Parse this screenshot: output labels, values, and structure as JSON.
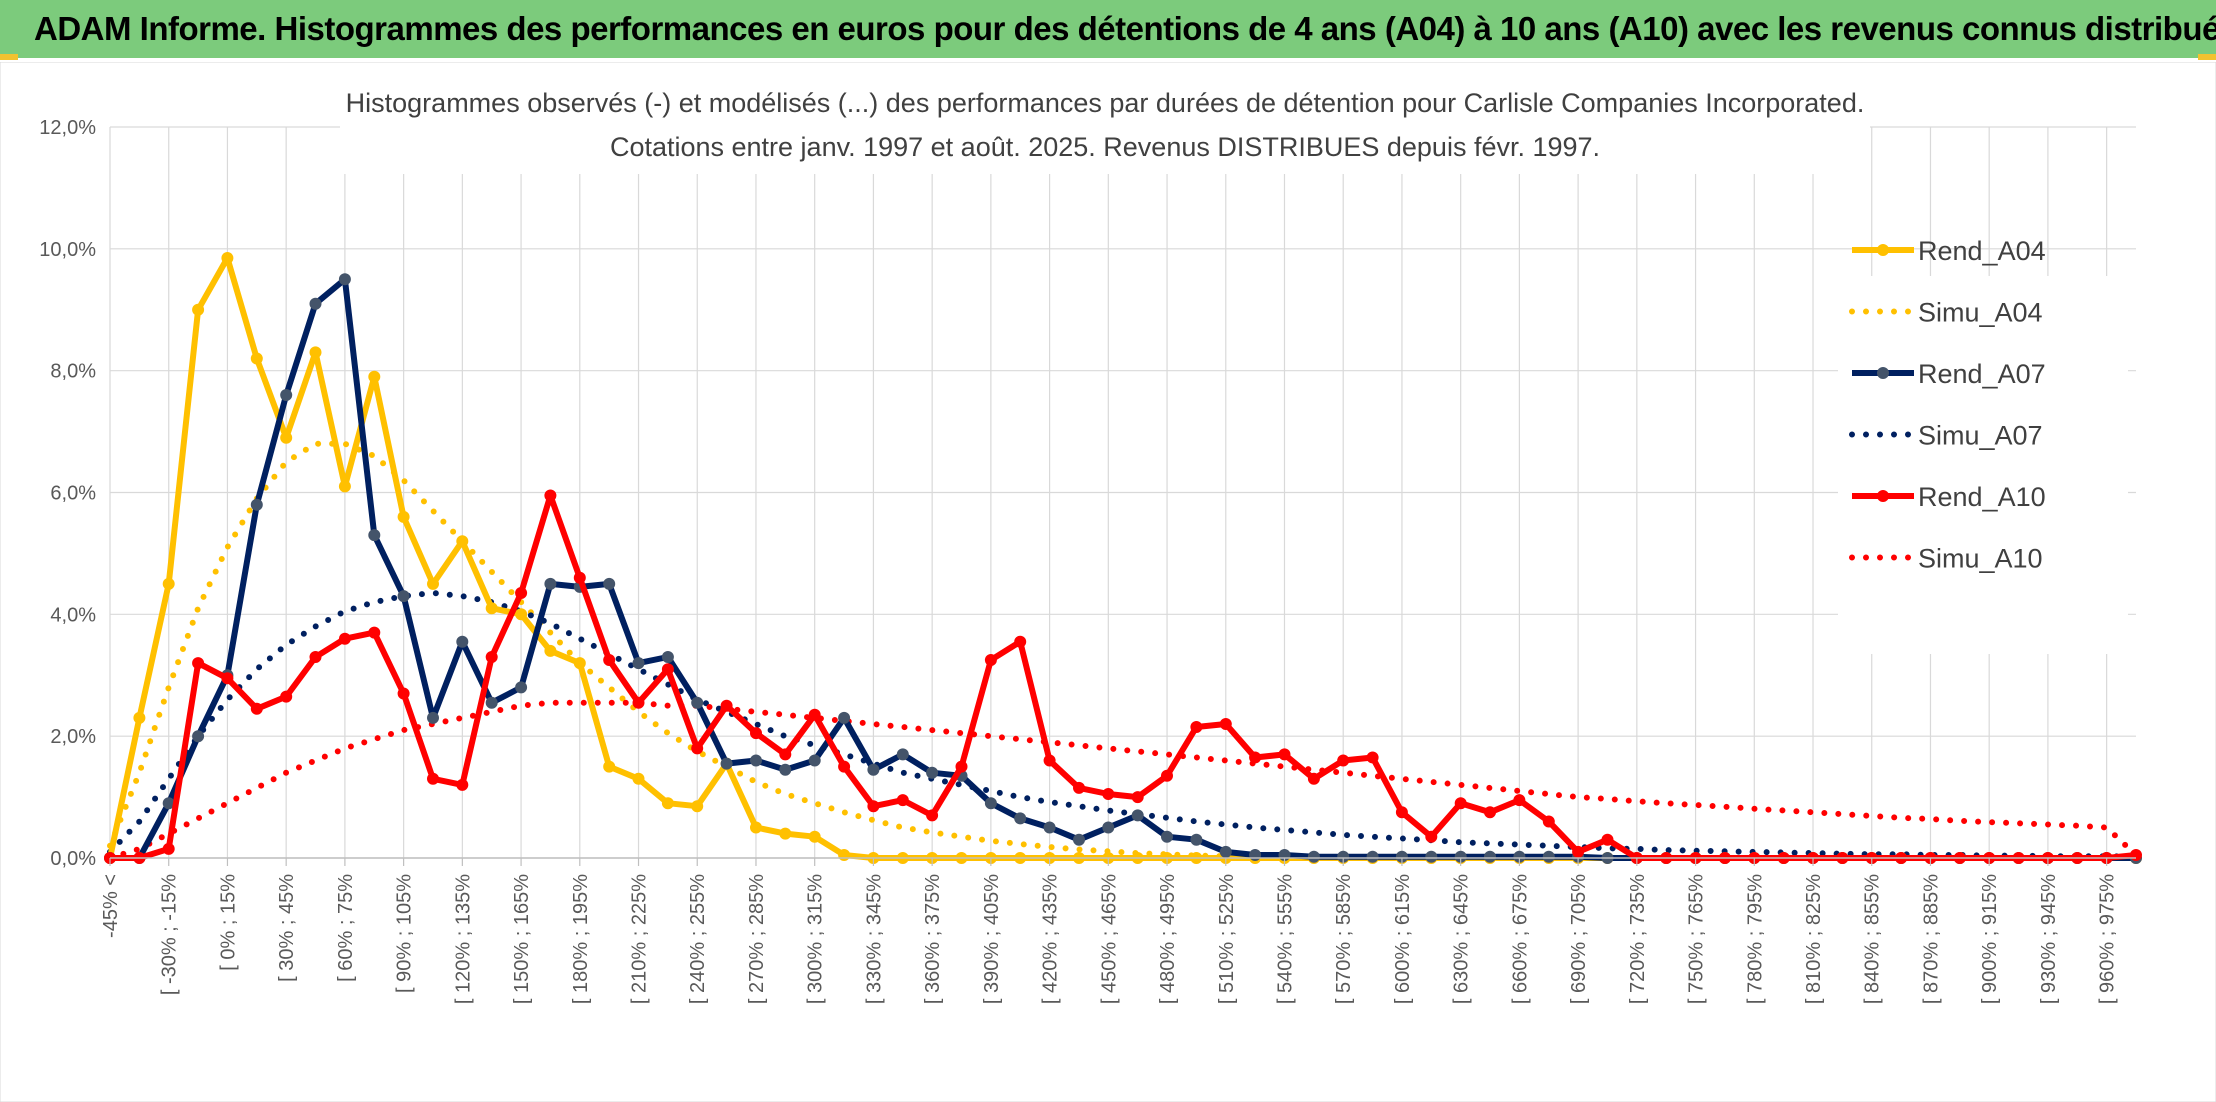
{
  "banner": {
    "title": "ADAM Informe. Histogrammes des performances en euros pour des détentions de 4 ans (A04) à 10 ans (A10) avec les revenus connus distribués"
  },
  "colors": {
    "banner_bg": "#7ccb7c",
    "banner_accent": "#f2c230",
    "A04": "#ffc000",
    "A07": "#002060",
    "A07_marker": "#44546a",
    "A10": "#ff0000",
    "grid": "#d9d9d9"
  },
  "chart_data": {
    "type": "line",
    "title": "Histogrammes observés (-) et modélisés (...) des performances par durées de détention pour Carlisle Companies Incorporated.",
    "subtitle": "Cotations entre janv. 1997 et août. 2025. Revenus DISTRIBUES depuis févr. 1997.",
    "xlabel": "",
    "ylabel": "",
    "ylim": [
      0,
      12
    ],
    "y_unit": "%",
    "y_ticks": [
      "0,0%",
      "2,0%",
      "4,0%",
      "6,0%",
      "8,0%",
      "10,0%",
      "12,0%"
    ],
    "grid": true,
    "legend_position": "right",
    "tick_labels": [
      "-45% <",
      "[ -30% ; -15%",
      "[ 0% ; 15%",
      "[ 30% ; 45%",
      "[ 60% ; 75%",
      "[ 90% ; 105%",
      "[ 120% ; 135%",
      "[ 150% ; 165%",
      "[ 180% ; 195%",
      "[ 210% ; 225%",
      "[ 240% ; 255%",
      "[ 270% ; 285%",
      "[ 300% ; 315%",
      "[ 330% ; 345%",
      "[ 360% ; 375%",
      "[ 390% ; 405%",
      "[ 420% ; 435%",
      "[ 450% ; 465%",
      "[ 480% ; 495%",
      "[ 510% ; 525%",
      "[ 540% ; 555%",
      "[ 570% ; 585%",
      "[ 600% ; 615%",
      "[ 630% ; 645%",
      "[ 660% ; 675%",
      "[ 690% ; 705%",
      "[ 720% ; 735%",
      "[ 750% ; 765%",
      "[ 780% ; 795%",
      "[ 810% ; 825%",
      "[ 840% ; 855%",
      "[ 870% ; 885%",
      "[ 900% ; 915%",
      "[ 930% ; 945%",
      "[ 960% ; 975%"
    ],
    "series": [
      {
        "name": "Rend_A04",
        "style": "solid",
        "color": "#ffc000",
        "marker_color": "#ffc000",
        "values": [
          0,
          2.3,
          4.5,
          9.0,
          9.85,
          8.2,
          6.9,
          8.3,
          6.1,
          7.9,
          5.6,
          4.5,
          5.2,
          4.1,
          4.0,
          3.4,
          3.2,
          1.5,
          1.3,
          0.9,
          0.85,
          1.55,
          0.5,
          0.4,
          0.35,
          0.05,
          0,
          0,
          0,
          0,
          0,
          0,
          0,
          0,
          0,
          0,
          0,
          0,
          0,
          0,
          0,
          0,
          0,
          0,
          0,
          0,
          0,
          0,
          0,
          0,
          0,
          0,
          0,
          0,
          0,
          0,
          0,
          0,
          0,
          0,
          0,
          0,
          0,
          0,
          0,
          0,
          0,
          0,
          0,
          0
        ]
      },
      {
        "name": "Simu_A04",
        "style": "dotted",
        "color": "#ffc000",
        "values": [
          0.2,
          1.4,
          2.8,
          4.1,
          5.1,
          5.9,
          6.5,
          6.8,
          6.8,
          6.6,
          6.2,
          5.7,
          5.2,
          4.7,
          4.2,
          3.7,
          3.2,
          2.8,
          2.4,
          2.05,
          1.75,
          1.5,
          1.25,
          1.05,
          0.9,
          0.75,
          0.62,
          0.5,
          0.42,
          0.35,
          0.28,
          0.23,
          0.18,
          0.14,
          0.11,
          0.08,
          0.06,
          0.04,
          0.03,
          0.02,
          0.01,
          0.01,
          0,
          0,
          0,
          0,
          0,
          0,
          0,
          0,
          0,
          0,
          0,
          0,
          0,
          0,
          0,
          0,
          0,
          0,
          0,
          0,
          0,
          0,
          0,
          0,
          0,
          0,
          0,
          0
        ]
      },
      {
        "name": "Rend_A07",
        "style": "solid",
        "color": "#002060",
        "marker_color": "#44546a",
        "values": [
          0,
          0,
          0.9,
          2.0,
          3.0,
          5.8,
          7.6,
          9.1,
          9.5,
          5.3,
          4.3,
          2.3,
          3.55,
          2.55,
          2.8,
          4.5,
          4.45,
          4.5,
          3.2,
          3.3,
          2.55,
          1.55,
          1.6,
          1.45,
          1.6,
          2.3,
          1.45,
          1.7,
          1.4,
          1.35,
          0.9,
          0.65,
          0.5,
          0.3,
          0.5,
          0.7,
          0.35,
          0.3,
          0.1,
          0.05,
          0.05,
          0.02,
          0.02,
          0.02,
          0.02,
          0.02,
          0.02,
          0.02,
          0.02,
          0.02,
          0.02,
          0,
          0,
          0,
          0,
          0,
          0,
          0,
          0,
          0,
          0,
          0,
          0,
          0,
          0,
          0,
          0,
          0,
          0,
          0
        ]
      },
      {
        "name": "Simu_A07",
        "style": "dotted",
        "color": "#002060",
        "values": [
          0.1,
          0.6,
          1.3,
          2.0,
          2.6,
          3.1,
          3.5,
          3.8,
          4.05,
          4.2,
          4.3,
          4.35,
          4.3,
          4.2,
          4.05,
          3.85,
          3.6,
          3.35,
          3.1,
          2.85,
          2.6,
          2.4,
          2.2,
          2.0,
          1.85,
          1.7,
          1.55,
          1.4,
          1.3,
          1.2,
          1.1,
          1.0,
          0.92,
          0.85,
          0.78,
          0.72,
          0.66,
          0.6,
          0.55,
          0.5,
          0.46,
          0.42,
          0.38,
          0.35,
          0.32,
          0.29,
          0.26,
          0.24,
          0.22,
          0.2,
          0.18,
          0.16,
          0.15,
          0.13,
          0.12,
          0.11,
          0.1,
          0.09,
          0.08,
          0.07,
          0.06,
          0.06,
          0.05,
          0.05,
          0.04,
          0.04,
          0.03,
          0.03,
          0.03,
          0.02
        ]
      },
      {
        "name": "Rend_A10",
        "style": "solid",
        "color": "#ff0000",
        "marker_color": "#ff0000",
        "values": [
          0,
          0,
          0.15,
          3.2,
          2.95,
          2.45,
          2.65,
          3.3,
          3.6,
          3.7,
          2.7,
          1.3,
          1.2,
          3.3,
          4.35,
          5.95,
          4.6,
          3.25,
          2.55,
          3.1,
          1.8,
          2.5,
          2.05,
          1.7,
          2.35,
          1.5,
          0.85,
          0.95,
          0.7,
          1.5,
          3.25,
          3.55,
          1.6,
          1.15,
          1.05,
          1.0,
          1.35,
          2.15,
          2.2,
          1.65,
          1.7,
          1.3,
          1.6,
          1.65,
          0.75,
          0.35,
          0.9,
          0.75,
          0.95,
          0.6,
          0.1,
          0.3,
          0,
          0,
          0,
          0,
          0,
          0,
          0,
          0,
          0,
          0,
          0,
          0,
          0,
          0,
          0,
          0,
          0,
          0.05
        ]
      },
      {
        "name": "Simu_A10",
        "style": "dotted",
        "color": "#ff0000",
        "values": [
          0,
          0.15,
          0.4,
          0.65,
          0.9,
          1.15,
          1.4,
          1.6,
          1.8,
          1.95,
          2.1,
          2.2,
          2.3,
          2.4,
          2.5,
          2.55,
          2.55,
          2.55,
          2.55,
          2.5,
          2.5,
          2.45,
          2.4,
          2.35,
          2.3,
          2.25,
          2.2,
          2.15,
          2.1,
          2.05,
          2.0,
          1.95,
          1.9,
          1.85,
          1.8,
          1.75,
          1.7,
          1.65,
          1.6,
          1.55,
          1.5,
          1.45,
          1.4,
          1.35,
          1.3,
          1.25,
          1.2,
          1.15,
          1.1,
          1.05,
          1.0,
          0.97,
          0.93,
          0.9,
          0.87,
          0.84,
          0.81,
          0.78,
          0.75,
          0.72,
          0.69,
          0.66,
          0.64,
          0.61,
          0.59,
          0.57,
          0.55,
          0.53,
          0.5,
          0.05
        ]
      }
    ]
  }
}
